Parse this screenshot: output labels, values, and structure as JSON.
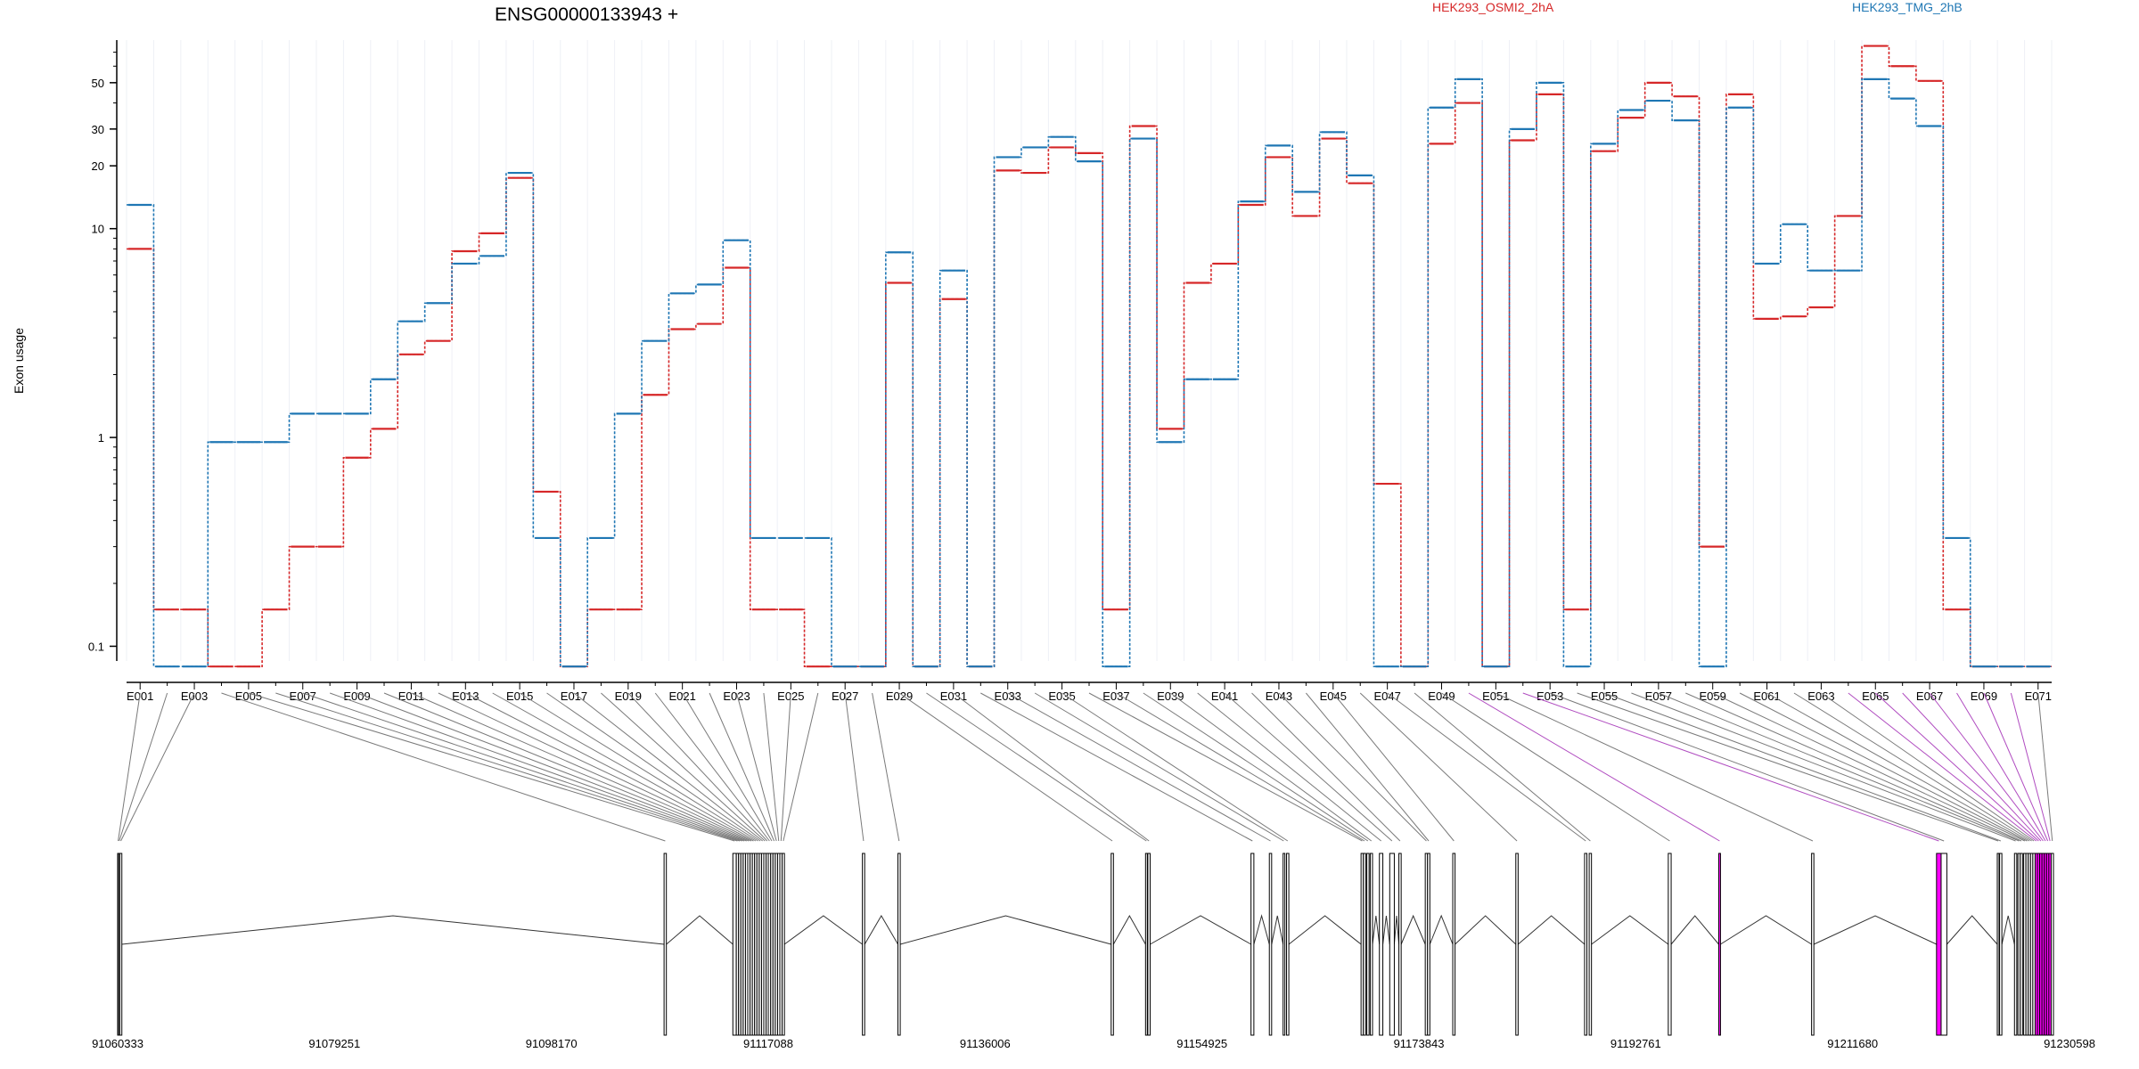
{
  "chart_data": {
    "type": "line",
    "title": "ENSG00000133943 +",
    "ylabel": "Exon usage",
    "xlabel": "",
    "yscale": "log",
    "yticks": [
      "0.1",
      "1",
      "10",
      "20",
      "30",
      "50"
    ],
    "ylim": [
      0.085,
      80
    ],
    "grid": "vertical",
    "legend_position": "top",
    "series": [
      {
        "name": "HEK293_OSMI2_2hA",
        "color": "#d62728",
        "values": [
          8,
          0.15,
          0.15,
          0.08,
          0.08,
          0.15,
          0.3,
          0.3,
          0.8,
          1.1,
          2.5,
          2.9,
          7.8,
          9.5,
          17.5,
          0.55,
          0.08,
          0.15,
          0.15,
          1.6,
          3.3,
          3.5,
          6.5,
          0.15,
          0.15,
          0.08,
          0.08,
          0.08,
          5.5,
          0.08,
          4.6,
          0.08,
          19,
          18.5,
          24.5,
          23,
          0.15,
          31,
          1.1,
          5.5,
          6.8,
          13,
          22,
          11.5,
          27,
          16.5,
          0.6,
          0.08,
          25.5,
          40,
          0.08,
          26.5,
          44,
          0.15,
          23.5,
          34,
          50,
          43,
          0.3,
          44,
          3.7,
          3.8,
          4.2,
          11.5,
          75,
          60,
          51,
          0.15,
          0.08,
          0.08,
          0.08
        ]
      },
      {
        "name": "HEK293_TMG_2hB",
        "color": "#1f77b4",
        "values": [
          13,
          0.08,
          0.08,
          0.95,
          0.95,
          0.95,
          1.3,
          1.3,
          1.3,
          1.9,
          3.6,
          4.4,
          6.8,
          7.4,
          18.5,
          0.33,
          0.08,
          0.33,
          1.3,
          2.9,
          4.9,
          5.4,
          8.8,
          0.33,
          0.33,
          0.33,
          0.08,
          0.08,
          7.7,
          0.08,
          6.3,
          0.08,
          22,
          24.5,
          27.5,
          21,
          0.08,
          27,
          0.95,
          1.9,
          1.9,
          13.5,
          25,
          15,
          29,
          18,
          0.08,
          0.08,
          38,
          52,
          0.08,
          30,
          50,
          0.08,
          25.5,
          37,
          41,
          33,
          0.08,
          38,
          6.8,
          10.5,
          6.3,
          6.3,
          52,
          42,
          31,
          0.33,
          0.08,
          0.08,
          0.08
        ]
      }
    ],
    "exon_labels": [
      "E001",
      "E003",
      "E005",
      "E007",
      "E009",
      "E011",
      "E013",
      "E015",
      "E017",
      "E019",
      "E021",
      "E023",
      "E025",
      "E027",
      "E029",
      "E031",
      "E033",
      "E035",
      "E037",
      "E039",
      "E041",
      "E043",
      "E045",
      "E047",
      "E049",
      "E051",
      "E053",
      "E055",
      "E057",
      "E059",
      "E061",
      "E063",
      "E065",
      "E067",
      "E069",
      "E071"
    ],
    "genomic_axis": {
      "range": [
        91060333,
        91230598
      ],
      "tick_labels": [
        "91060333",
        "91079251",
        "91098170",
        "91117088",
        "91136006",
        "91154925",
        "91173843",
        "91192761",
        "91211680",
        "91230598"
      ]
    },
    "exon_intervals": [
      [
        91060333,
        91060420
      ],
      [
        91060420,
        91060520
      ],
      [
        91060520,
        91060700
      ],
      [
        91108000,
        91108200
      ],
      [
        91114000,
        91114300
      ],
      [
        91114300,
        91114500
      ],
      [
        91114500,
        91114700
      ],
      [
        91114700,
        91114900
      ],
      [
        91114900,
        91115100
      ],
      [
        91115100,
        91115300
      ],
      [
        91115300,
        91115500
      ],
      [
        91115500,
        91115700
      ],
      [
        91115700,
        91115900
      ],
      [
        91115900,
        91116100
      ],
      [
        91116100,
        91116300
      ],
      [
        91116300,
        91116500
      ],
      [
        91116500,
        91116700
      ],
      [
        91116700,
        91116900
      ],
      [
        91116900,
        91117088
      ],
      [
        91117088,
        91117300
      ],
      [
        91117300,
        91117500
      ],
      [
        91117500,
        91117700
      ],
      [
        91117700,
        91117900
      ],
      [
        91117900,
        91118100
      ],
      [
        91118100,
        91118300
      ],
      [
        91118300,
        91118500
      ],
      [
        91125300,
        91125500
      ],
      [
        91128400,
        91128600
      ],
      [
        91147000,
        91147200
      ],
      [
        91150000,
        91150150
      ],
      [
        91150200,
        91150400
      ],
      [
        91159200,
        91159450
      ],
      [
        91160800,
        91161000
      ],
      [
        91162000,
        91162100
      ],
      [
        91162300,
        91162500
      ],
      [
        91168800,
        91169000
      ],
      [
        91169000,
        91169200
      ],
      [
        91169300,
        91169500
      ],
      [
        91169600,
        91169800
      ],
      [
        91170400,
        91170700
      ],
      [
        91171300,
        91171700
      ],
      [
        91172100,
        91172300
      ],
      [
        91174400,
        91174600
      ],
      [
        91174600,
        91174800
      ],
      [
        91176800,
        91177000
      ],
      [
        91182300,
        91182500
      ],
      [
        91188300,
        91188500
      ],
      [
        91188700,
        91188900
      ],
      [
        91195600,
        91195850
      ],
      [
        91200000,
        91200150
      ],
      [
        91208100,
        91208300
      ],
      [
        91219000,
        91219400
      ],
      [
        91219400,
        91219900
      ],
      [
        91224300,
        91224450
      ],
      [
        91224500,
        91224700
      ],
      [
        91225800,
        91226000
      ],
      [
        91226100,
        91226300
      ],
      [
        91226300,
        91226500
      ],
      [
        91226600,
        91226800
      ],
      [
        91226800,
        91227000
      ],
      [
        91227000,
        91227200
      ],
      [
        91227200,
        91227400
      ],
      [
        91227400,
        91227600
      ],
      [
        91227600,
        91227800
      ],
      [
        91227800,
        91228000
      ],
      [
        91228000,
        91228200
      ],
      [
        91228200,
        91228400
      ],
      [
        91228400,
        91228600
      ],
      [
        91228600,
        91228800
      ],
      [
        91228800,
        91229000
      ],
      [
        91229000,
        91229200
      ]
    ],
    "highlighted_exons": [
      49,
      51,
      63,
      64,
      65,
      66,
      67,
      68,
      69
    ]
  }
}
